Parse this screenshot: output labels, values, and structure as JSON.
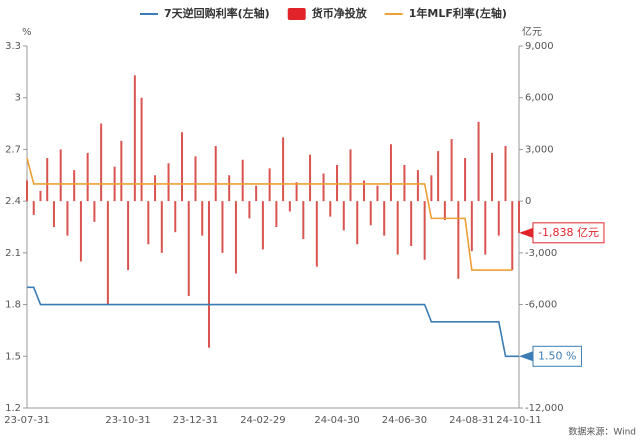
{
  "chart_data": {
    "type": "bar-line",
    "y_unit": "%",
    "y2_unit": "亿元",
    "source": "数据来源：Wind",
    "categories": [
      "23-07-31",
      null,
      null,
      null,
      null,
      null,
      null,
      null,
      null,
      null,
      null,
      null,
      null,
      null,
      null,
      "23-10-31",
      null,
      null,
      null,
      null,
      null,
      null,
      null,
      null,
      null,
      "23-12-31",
      null,
      null,
      null,
      null,
      null,
      null,
      null,
      null,
      null,
      "24-02-29",
      null,
      null,
      null,
      null,
      null,
      null,
      null,
      null,
      null,
      null,
      "24-04-30",
      null,
      null,
      null,
      null,
      null,
      null,
      null,
      null,
      null,
      "24-06-30",
      null,
      null,
      null,
      null,
      null,
      null,
      null,
      null,
      null,
      "24-08-31",
      null,
      null,
      null,
      null,
      null,
      null,
      "24-10-11"
    ],
    "series": [
      {
        "name": "7天逆回购利率(左轴)",
        "color": "#3b7db4",
        "kind": "line",
        "values": [
          1.9,
          1.9,
          1.8,
          1.8,
          1.8,
          1.8,
          1.8,
          1.8,
          1.8,
          1.8,
          1.8,
          1.8,
          1.8,
          1.8,
          1.8,
          1.8,
          1.8,
          1.8,
          1.8,
          1.8,
          1.8,
          1.8,
          1.8,
          1.8,
          1.8,
          1.8,
          1.8,
          1.8,
          1.8,
          1.8,
          1.8,
          1.8,
          1.8,
          1.8,
          1.8,
          1.8,
          1.8,
          1.8,
          1.8,
          1.8,
          1.8,
          1.8,
          1.8,
          1.8,
          1.8,
          1.8,
          1.8,
          1.8,
          1.8,
          1.8,
          1.8,
          1.8,
          1.8,
          1.8,
          1.8,
          1.8,
          1.8,
          1.8,
          1.8,
          1.8,
          1.7,
          1.7,
          1.7,
          1.7,
          1.7,
          1.7,
          1.7,
          1.7,
          1.7,
          1.7,
          1.7,
          1.5,
          1.5,
          1.5
        ],
        "value_labels": [
          null,
          null,
          null,
          null,
          null,
          null,
          null,
          null,
          null,
          null,
          null,
          null,
          null,
          null,
          null,
          null,
          null,
          null,
          null,
          null,
          null,
          null,
          null,
          null,
          null,
          null,
          null,
          null,
          null,
          null,
          null,
          null,
          null,
          null,
          null,
          null,
          null,
          null,
          null,
          null,
          null,
          null,
          null,
          null,
          null,
          null,
          null,
          null,
          null,
          null,
          null,
          null,
          null,
          null,
          null,
          null,
          null,
          null,
          null,
          null,
          null,
          null,
          null,
          null,
          null,
          null,
          null,
          null,
          null,
          null,
          null,
          null,
          null,
          "1.50 %"
        ]
      },
      {
        "name": "货币净投放",
        "color": "#e0242a",
        "bar_color": "#d9534f",
        "kind": "bar",
        "axis": "y2",
        "values": [
          1200,
          -800,
          600,
          2500,
          -1500,
          3000,
          -2000,
          1800,
          -3500,
          2800,
          -1200,
          4500,
          -6000,
          2000,
          3500,
          -4000,
          7300,
          6000,
          -2500,
          1500,
          -3000,
          2200,
          -1800,
          4000,
          -5500,
          2600,
          -2000,
          -8500,
          3200,
          -3000,
          1500,
          -4200,
          2400,
          -1000,
          900,
          -2800,
          1900,
          -1500,
          3700,
          -600,
          1100,
          -2200,
          2700,
          -3800,
          1600,
          -900,
          2100,
          -1700,
          3000,
          -2500,
          1200,
          -1400,
          900,
          -2000,
          3300,
          -3100,
          2100,
          -2600,
          1800,
          -3400,
          1500,
          2900,
          -1100,
          3600,
          -4500,
          2500,
          -2900,
          4600,
          -3100,
          2800,
          -2000,
          3200,
          -4000,
          -1838
        ],
        "value_labels": [
          null,
          null,
          null,
          null,
          null,
          null,
          null,
          null,
          null,
          null,
          null,
          null,
          null,
          null,
          null,
          null,
          null,
          null,
          null,
          null,
          null,
          null,
          null,
          null,
          null,
          null,
          null,
          null,
          null,
          null,
          null,
          null,
          null,
          null,
          null,
          null,
          null,
          null,
          null,
          null,
          null,
          null,
          null,
          null,
          null,
          null,
          null,
          null,
          null,
          null,
          null,
          null,
          null,
          null,
          null,
          null,
          null,
          null,
          null,
          null,
          null,
          null,
          null,
          null,
          null,
          null,
          null,
          null,
          null,
          null,
          null,
          null,
          null,
          "-1,838 亿元"
        ]
      },
      {
        "name": "1年MLF利率(左轴)",
        "color": "#eda033",
        "kind": "line",
        "values": [
          2.65,
          2.5,
          2.5,
          2.5,
          2.5,
          2.5,
          2.5,
          2.5,
          2.5,
          2.5,
          2.5,
          2.5,
          2.5,
          2.5,
          2.5,
          2.5,
          2.5,
          2.5,
          2.5,
          2.5,
          2.5,
          2.5,
          2.5,
          2.5,
          2.5,
          2.5,
          2.5,
          2.5,
          2.5,
          2.5,
          2.5,
          2.5,
          2.5,
          2.5,
          2.5,
          2.5,
          2.5,
          2.5,
          2.5,
          2.5,
          2.5,
          2.5,
          2.5,
          2.5,
          2.5,
          2.5,
          2.5,
          2.5,
          2.5,
          2.5,
          2.5,
          2.5,
          2.5,
          2.5,
          2.5,
          2.5,
          2.5,
          2.5,
          2.5,
          2.5,
          2.3,
          2.3,
          2.3,
          2.3,
          2.3,
          2.3,
          2.0,
          2.0,
          2.0,
          2.0,
          2.0,
          2.0,
          2.0,
          null
        ]
      }
    ],
    "ylim": [
      1.2,
      3.3
    ],
    "yticks": [
      1.2,
      1.5,
      1.8,
      2.1,
      2.4,
      2.7,
      3,
      3.3
    ],
    "y2lim": [
      -12000,
      9000
    ],
    "y2ticks": [
      {
        "value": -12000,
        "label": "-12,000"
      },
      {
        "value": -6000,
        "label": "-6,000"
      },
      {
        "value": -3000,
        "label": "-3,000"
      },
      0,
      {
        "value": 3000,
        "label": "3,000"
      },
      {
        "value": 6000,
        "label": "6,000"
      },
      {
        "value": 9000,
        "label": "9,000"
      }
    ],
    "legend": "top"
  }
}
